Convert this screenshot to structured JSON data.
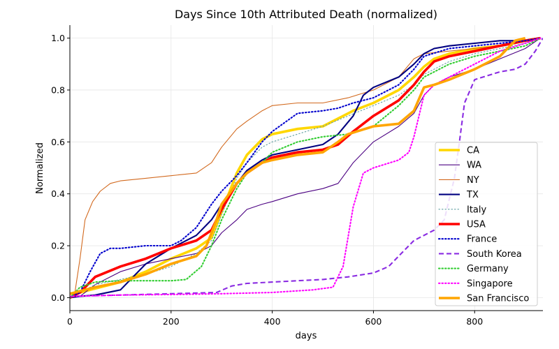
{
  "chart_data": {
    "type": "line",
    "title": "Days Since 10th Attributed Death (normalized)",
    "xlabel": "days",
    "ylabel": "Normalized",
    "xlim": [
      0,
      935
    ],
    "ylim": [
      -0.05,
      1.05
    ],
    "xticks": [
      0,
      200,
      400,
      600,
      800
    ],
    "yticks": [
      0.0,
      0.2,
      0.4,
      0.6,
      0.8,
      1.0
    ],
    "grid": true,
    "legend_position": "lower right",
    "series": [
      {
        "name": "CA",
        "color": "#FFD700",
        "dash": "solid",
        "width": "thick",
        "x": [
          0,
          20,
          50,
          100,
          150,
          200,
          250,
          280,
          300,
          330,
          350,
          380,
          400,
          450,
          500,
          530,
          560,
          600,
          650,
          680,
          700,
          720,
          750,
          800,
          850,
          900,
          930
        ],
        "y": [
          0.015,
          0.02,
          0.035,
          0.06,
          0.1,
          0.15,
          0.19,
          0.23,
          0.33,
          0.48,
          0.55,
          0.61,
          0.63,
          0.65,
          0.66,
          0.69,
          0.72,
          0.75,
          0.8,
          0.85,
          0.89,
          0.92,
          0.94,
          0.96,
          0.97,
          0.99,
          1.0
        ]
      },
      {
        "name": "WA",
        "color": "#4B0082",
        "dash": "solid",
        "width": "thin",
        "x": [
          0,
          20,
          50,
          100,
          150,
          200,
          250,
          280,
          300,
          330,
          350,
          380,
          400,
          450,
          500,
          530,
          560,
          600,
          650,
          680,
          700,
          720,
          750,
          800,
          850,
          900,
          930
        ],
        "y": [
          0.0,
          0.005,
          0.05,
          0.1,
          0.13,
          0.15,
          0.17,
          0.2,
          0.25,
          0.3,
          0.34,
          0.36,
          0.37,
          0.4,
          0.42,
          0.44,
          0.52,
          0.6,
          0.66,
          0.71,
          0.78,
          0.82,
          0.85,
          0.88,
          0.92,
          0.96,
          1.0
        ]
      },
      {
        "name": "NY",
        "color": "#D2691E",
        "dash": "solid",
        "width": "thin",
        "x": [
          0,
          10,
          20,
          30,
          45,
          60,
          80,
          100,
          150,
          200,
          250,
          280,
          300,
          330,
          350,
          380,
          400,
          450,
          500,
          550,
          600,
          650,
          680,
          700,
          750,
          800,
          850,
          900,
          930
        ],
        "y": [
          0.0,
          0.02,
          0.15,
          0.3,
          0.37,
          0.41,
          0.44,
          0.45,
          0.46,
          0.47,
          0.48,
          0.52,
          0.58,
          0.65,
          0.68,
          0.72,
          0.74,
          0.75,
          0.75,
          0.77,
          0.8,
          0.85,
          0.92,
          0.94,
          0.95,
          0.96,
          0.97,
          0.99,
          1.0
        ]
      },
      {
        "name": "TX",
        "color": "#000080",
        "dash": "solid",
        "width": "medium",
        "x": [
          0,
          20,
          50,
          100,
          120,
          150,
          200,
          250,
          280,
          300,
          330,
          350,
          380,
          400,
          450,
          500,
          530,
          560,
          580,
          600,
          650,
          680,
          700,
          720,
          750,
          800,
          850,
          900,
          930
        ],
        "y": [
          0.0,
          0.005,
          0.01,
          0.03,
          0.07,
          0.13,
          0.19,
          0.24,
          0.3,
          0.36,
          0.44,
          0.49,
          0.53,
          0.55,
          0.57,
          0.59,
          0.63,
          0.7,
          0.78,
          0.81,
          0.85,
          0.9,
          0.94,
          0.96,
          0.97,
          0.98,
          0.99,
          0.99,
          1.0
        ]
      },
      {
        "name": "Italy",
        "color": "#5F9EA0",
        "dash": "dotted",
        "width": "thin",
        "x": [
          0,
          20,
          50,
          100,
          150,
          200,
          250,
          280,
          300,
          330,
          350,
          380,
          400,
          450,
          500,
          550,
          600,
          650,
          680,
          700,
          750,
          800,
          850,
          900,
          930
        ],
        "y": [
          0.0,
          0.02,
          0.05,
          0.07,
          0.09,
          0.12,
          0.17,
          0.22,
          0.32,
          0.46,
          0.52,
          0.58,
          0.6,
          0.63,
          0.66,
          0.7,
          0.74,
          0.78,
          0.82,
          0.86,
          0.91,
          0.94,
          0.96,
          0.98,
          1.0
        ]
      },
      {
        "name": "USA",
        "color": "#FF0000",
        "dash": "solid",
        "width": "thick",
        "x": [
          0,
          20,
          50,
          100,
          150,
          200,
          250,
          280,
          300,
          330,
          350,
          380,
          400,
          450,
          500,
          530,
          560,
          600,
          650,
          680,
          700,
          720,
          750,
          800,
          850,
          900,
          930
        ],
        "y": [
          0.0,
          0.02,
          0.08,
          0.12,
          0.15,
          0.19,
          0.22,
          0.26,
          0.34,
          0.44,
          0.48,
          0.52,
          0.54,
          0.56,
          0.57,
          0.59,
          0.64,
          0.7,
          0.76,
          0.82,
          0.87,
          0.91,
          0.93,
          0.95,
          0.97,
          0.99,
          1.0
        ]
      },
      {
        "name": "France",
        "color": "#0000CD",
        "dash": "dotted",
        "width": "medium",
        "x": [
          0,
          20,
          40,
          60,
          80,
          100,
          150,
          200,
          220,
          250,
          280,
          300,
          330,
          350,
          380,
          400,
          450,
          500,
          530,
          560,
          600,
          650,
          680,
          700,
          750,
          800,
          850,
          900,
          930
        ],
        "y": [
          0.0,
          0.02,
          0.1,
          0.17,
          0.19,
          0.19,
          0.2,
          0.2,
          0.22,
          0.27,
          0.36,
          0.41,
          0.47,
          0.52,
          0.6,
          0.64,
          0.71,
          0.72,
          0.73,
          0.75,
          0.77,
          0.82,
          0.88,
          0.93,
          0.96,
          0.97,
          0.98,
          0.99,
          1.0
        ]
      },
      {
        "name": "South Korea",
        "color": "#8A2BE2",
        "dash": "dashed",
        "width": "medium",
        "x": [
          0,
          100,
          200,
          290,
          320,
          350,
          400,
          450,
          500,
          550,
          600,
          630,
          650,
          680,
          700,
          720,
          740,
          760,
          770,
          780,
          800,
          850,
          880,
          900,
          920,
          935
        ],
        "y": [
          0.005,
          0.01,
          0.015,
          0.02,
          0.045,
          0.055,
          0.06,
          0.065,
          0.07,
          0.08,
          0.095,
          0.12,
          0.16,
          0.22,
          0.24,
          0.26,
          0.3,
          0.46,
          0.6,
          0.75,
          0.84,
          0.87,
          0.88,
          0.9,
          0.95,
          1.0
        ]
      },
      {
        "name": "Germany",
        "color": "#32CD32",
        "dash": "dotted",
        "width": "medium",
        "x": [
          0,
          20,
          50,
          100,
          150,
          200,
          230,
          260,
          280,
          300,
          330,
          350,
          380,
          400,
          450,
          500,
          550,
          600,
          650,
          680,
          700,
          750,
          800,
          850,
          900,
          930
        ],
        "y": [
          0.0,
          0.04,
          0.06,
          0.065,
          0.065,
          0.065,
          0.07,
          0.12,
          0.2,
          0.3,
          0.42,
          0.48,
          0.52,
          0.56,
          0.6,
          0.62,
          0.63,
          0.66,
          0.74,
          0.8,
          0.85,
          0.9,
          0.93,
          0.95,
          0.97,
          1.0
        ]
      },
      {
        "name": "Singapore",
        "color": "#FF00FF",
        "dash": "dotted",
        "width": "medium",
        "x": [
          0,
          100,
          200,
          300,
          400,
          480,
          520,
          540,
          560,
          580,
          600,
          650,
          670,
          680,
          690,
          700,
          720,
          750,
          800,
          850,
          900,
          930
        ],
        "y": [
          0.005,
          0.01,
          0.012,
          0.015,
          0.02,
          0.03,
          0.04,
          0.12,
          0.35,
          0.48,
          0.5,
          0.53,
          0.56,
          0.62,
          0.7,
          0.78,
          0.82,
          0.85,
          0.9,
          0.95,
          0.98,
          1.0
        ]
      },
      {
        "name": "San Francisco",
        "color": "#FFA500",
        "dash": "solid",
        "width": "thick",
        "x": [
          0,
          20,
          50,
          100,
          150,
          200,
          250,
          270,
          290,
          300,
          330,
          350,
          380,
          400,
          450,
          500,
          530,
          550,
          600,
          650,
          680,
          700,
          720,
          750,
          800,
          850,
          870,
          880,
          900
        ],
        "y": [
          0.015,
          0.025,
          0.04,
          0.06,
          0.09,
          0.13,
          0.16,
          0.2,
          0.3,
          0.36,
          0.44,
          0.48,
          0.52,
          0.53,
          0.55,
          0.56,
          0.6,
          0.63,
          0.66,
          0.67,
          0.72,
          0.81,
          0.82,
          0.84,
          0.88,
          0.93,
          0.97,
          0.99,
          1.0
        ]
      }
    ]
  }
}
